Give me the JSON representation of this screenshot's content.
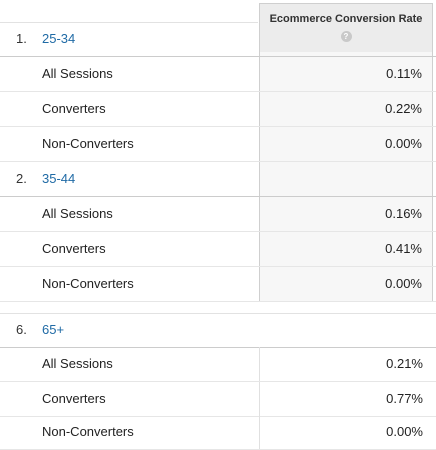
{
  "table": {
    "metric_header": "Ecommerce Conversion Rate",
    "help_glyph": "?",
    "groups": [
      {
        "rank": "1.",
        "label": "25-34",
        "rows": [
          {
            "segment": "All Sessions",
            "value": "0.11%"
          },
          {
            "segment": "Converters",
            "value": "0.22%"
          },
          {
            "segment": "Non-Converters",
            "value": "0.00%"
          }
        ]
      },
      {
        "rank": "2.",
        "label": "35-44",
        "rows": [
          {
            "segment": "All Sessions",
            "value": "0.16%"
          },
          {
            "segment": "Converters",
            "value": "0.41%"
          },
          {
            "segment": "Non-Converters",
            "value": "0.00%"
          }
        ]
      },
      {
        "rank": "6.",
        "label": "65+",
        "rows": [
          {
            "segment": "All Sessions",
            "value": "0.21%"
          },
          {
            "segment": "Converters",
            "value": "0.77%"
          },
          {
            "segment": "Non-Converters",
            "value": "0.00%"
          }
        ]
      }
    ]
  }
}
